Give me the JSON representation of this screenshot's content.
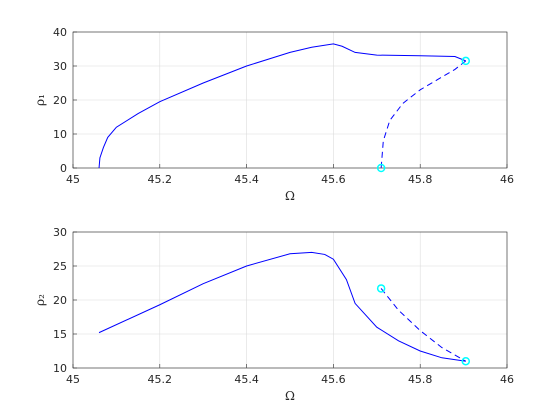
{
  "chart_data": [
    {
      "type": "line",
      "xlabel": "Ω",
      "ylabel": "ρ₁",
      "xlim": [
        45,
        46
      ],
      "xticks": [
        45,
        45.2,
        45.4,
        45.6,
        45.8,
        46
      ],
      "ylim": [
        0,
        40
      ],
      "yticks": [
        0,
        10,
        20,
        30,
        40
      ],
      "grid": true,
      "series": [
        {
          "color": "#0000ff",
          "dashed": false,
          "x": [
            45.06,
            45.062,
            45.07,
            45.08,
            45.1,
            45.15,
            45.2,
            45.3,
            45.4,
            45.5,
            45.55,
            45.6,
            45.62,
            45.65,
            45.7,
            45.8,
            45.88,
            45.905
          ],
          "values": [
            0,
            3,
            6,
            9,
            12,
            16,
            19.5,
            25,
            30,
            34,
            35.5,
            36.5,
            35.8,
            34,
            33.2,
            33,
            32.8,
            31.5
          ]
        },
        {
          "color": "#0000ff",
          "dashed": true,
          "x": [
            45.905,
            45.88,
            45.84,
            45.8,
            45.76,
            45.73,
            45.715,
            45.71
          ],
          "values": [
            31.5,
            29,
            26,
            23,
            19,
            14,
            8,
            0
          ]
        }
      ],
      "markers": {
        "color": "#00ffff",
        "x": [
          45.905,
          45.71
        ],
        "values": [
          31.5,
          0
        ]
      }
    },
    {
      "type": "line",
      "xlabel": "Ω",
      "ylabel": "ρ₂",
      "xlim": [
        45,
        46
      ],
      "xticks": [
        45,
        45.2,
        45.4,
        45.6,
        45.8,
        46
      ],
      "ylim": [
        10,
        30
      ],
      "yticks": [
        10,
        15,
        20,
        25,
        30
      ],
      "grid": true,
      "series": [
        {
          "color": "#0000ff",
          "dashed": false,
          "x": [
            45.06,
            45.2,
            45.3,
            45.4,
            45.5,
            45.55,
            45.58,
            45.6,
            45.63,
            45.65,
            45.7,
            45.75,
            45.8,
            45.85,
            45.905
          ],
          "values": [
            15.2,
            19.3,
            22.4,
            25,
            26.8,
            27,
            26.7,
            26,
            23,
            19.5,
            16,
            14,
            12.5,
            11.5,
            11
          ]
        },
        {
          "color": "#0000ff",
          "dashed": true,
          "x": [
            45.71,
            45.75,
            45.8,
            45.85,
            45.905
          ],
          "values": [
            21.7,
            18.5,
            15.5,
            13,
            11
          ]
        }
      ],
      "markers": {
        "color": "#00ffff",
        "x": [
          45.71,
          45.905
        ],
        "values": [
          21.7,
          11
        ]
      }
    }
  ]
}
